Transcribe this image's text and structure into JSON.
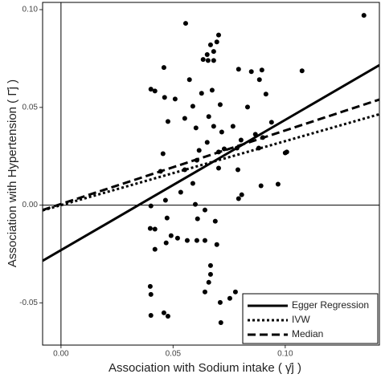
{
  "chart_data": {
    "type": "scatter",
    "x_label": "Association with Sodium intake ( γ̂j )",
    "y_label": "Association with Hypertension ( Γ̂j )",
    "xlim": [
      -0.0082,
      0.142
    ],
    "ylim": [
      -0.0716,
      0.1037
    ],
    "xticks": [
      {
        "value": 0,
        "label": "0.00"
      },
      {
        "value": 0.05,
        "label": "0.05"
      },
      {
        "value": 0.1,
        "label": "0.10"
      }
    ],
    "yticks": [
      {
        "value": -0.05,
        "label": "-0.05"
      },
      {
        "value": 0,
        "label": "0.00"
      },
      {
        "value": 0.05,
        "label": "0.05"
      },
      {
        "value": 0.1,
        "label": "0.10"
      }
    ],
    "reference_x": 0,
    "reference_y": 0,
    "point_color": "#000000",
    "legend_position": "bottom-right",
    "points": {
      "x": [
        0.0556,
        0.0703,
        0.0695,
        0.0667,
        0.0652,
        0.0681,
        0.0634,
        0.0656,
        0.0681,
        0.0459,
        0.0792,
        0.0849,
        0.0896,
        0.0885,
        0.1075,
        0.0401,
        0.0419,
        0.0573,
        0.0462,
        0.0509,
        0.0588,
        0.071,
        0.0627,
        0.0674,
        0.0914,
        0.0832,
        0.0477,
        0.0552,
        0.0659,
        0.0767,
        0.0939,
        0.0602,
        0.0681,
        0.0717,
        0.0867,
        0.09,
        0.0652,
        0.0703,
        0.0616,
        0.0803,
        0.0882,
        0.0728,
        0.0785,
        0.1007,
        0.0455,
        0.0606,
        0.0703,
        0.0444,
        0.0552,
        0.0789,
        0.1,
        0.0588,
        0.0892,
        0.0968,
        0.0806,
        0.0792,
        0.0466,
        0.0401,
        0.0599,
        0.0642,
        0.0473,
        0.0609,
        0.0688,
        0.0398,
        0.0419,
        0.0491,
        0.052,
        0.0563,
        0.0606,
        0.0642,
        0.0419,
        0.0469,
        0.0695,
        0.0667,
        0.0667,
        0.0659,
        0.0398,
        0.0401,
        0.0642,
        0.0753,
        0.0778,
        0.071,
        0.0459,
        0.0477,
        0.0401,
        0.0713,
        0.1351,
        0.0534
      ],
      "values": [
        0.093,
        0.087,
        0.0835,
        0.082,
        0.077,
        0.0786,
        0.0745,
        0.074,
        0.074,
        0.0704,
        0.0695,
        0.0683,
        0.0691,
        0.0642,
        0.0687,
        0.0593,
        0.0584,
        0.0642,
        0.0551,
        0.0543,
        0.0506,
        0.0514,
        0.0572,
        0.0588,
        0.0568,
        0.0502,
        0.0428,
        0.0444,
        0.0453,
        0.0403,
        0.0424,
        0.0395,
        0.0403,
        0.0374,
        0.0362,
        0.0346,
        0.0321,
        0.0272,
        0.028,
        0.0333,
        0.0292,
        0.0288,
        0.0292,
        0.0272,
        0.0263,
        0.023,
        0.0189,
        0.0173,
        0.0181,
        0.0181,
        0.0267,
        0.0111,
        0.0099,
        0.0107,
        0.0053,
        0.0033,
        0.0025,
        -0.0004,
        0.0004,
        -0.0025,
        -0.0066,
        -0.007,
        -0.0082,
        -0.0119,
        -0.0123,
        -0.0156,
        -0.0169,
        -0.0181,
        -0.0181,
        -0.0181,
        -0.0226,
        -0.0193,
        -0.0202,
        -0.0309,
        -0.0354,
        -0.0395,
        -0.0416,
        -0.0457,
        -0.0444,
        -0.0477,
        -0.0444,
        -0.0498,
        -0.0551,
        -0.0568,
        -0.0564,
        -0.0601,
        0.0971,
        0.0066
      ]
    },
    "lines": [
      {
        "name": "Egger Regression",
        "dash": "solid",
        "color": "#000000",
        "x": [
          -0.0082,
          0.142
        ],
        "values": [
          -0.0285,
          0.0716
        ]
      },
      {
        "name": "IVW",
        "dash": "dotted",
        "color": "#000000",
        "x": [
          -0.0082,
          0.142
        ],
        "values": [
          -0.0027,
          0.0465
        ]
      },
      {
        "name": "Median",
        "dash": "dashed",
        "color": "#000000",
        "x": [
          -0.0082,
          0.142
        ],
        "values": [
          -0.0025,
          0.054
        ]
      }
    ]
  }
}
